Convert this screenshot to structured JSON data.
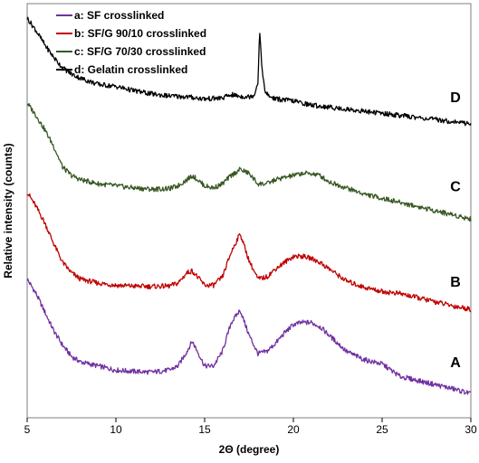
{
  "chart_data": {
    "type": "line",
    "xlabel": "2Θ (degree)",
    "ylabel": "Relative intensity (counts)",
    "xlim": [
      5,
      30
    ],
    "xticks": [
      5,
      10,
      15,
      20,
      25,
      30
    ],
    "yticks_shown": false,
    "grid": false,
    "legend_position": "top-left",
    "series": [
      {
        "name": "a: SF crosslinked",
        "curve_label": "A",
        "color": "#7030a0",
        "x": [
          5,
          5.5,
          6,
          6.5,
          7,
          7.5,
          8,
          9,
          10,
          11,
          12,
          13,
          13.5,
          14,
          14.3,
          14.6,
          15,
          15.5,
          16,
          16.5,
          17,
          17.5,
          18,
          18.5,
          19,
          19.5,
          20,
          20.5,
          21,
          21.5,
          22,
          22.5,
          23,
          24,
          25,
          25.5,
          26,
          27,
          28,
          29,
          30
        ],
        "y": [
          0.335,
          0.3,
          0.255,
          0.21,
          0.175,
          0.148,
          0.135,
          0.125,
          0.115,
          0.112,
          0.11,
          0.115,
          0.125,
          0.16,
          0.185,
          0.16,
          0.125,
          0.125,
          0.16,
          0.23,
          0.26,
          0.2,
          0.155,
          0.16,
          0.18,
          0.205,
          0.225,
          0.23,
          0.23,
          0.22,
          0.2,
          0.18,
          0.16,
          0.14,
          0.13,
          0.115,
          0.1,
          0.09,
          0.08,
          0.07,
          0.058
        ]
      },
      {
        "name": "b: SF/G 90/10 crosslinked",
        "curve_label": "B",
        "color": "#c00000",
        "x": [
          5,
          5.5,
          6,
          6.5,
          7,
          7.5,
          8,
          9,
          10,
          11,
          12,
          13,
          13.5,
          14,
          14.3,
          14.6,
          15,
          15.5,
          16,
          16.5,
          17,
          17.5,
          18,
          18.5,
          19,
          19.5,
          20,
          20.5,
          21,
          21.5,
          22,
          22.5,
          23,
          24,
          25,
          26,
          27,
          28,
          29,
          30
        ],
        "y": [
          0.545,
          0.51,
          0.47,
          0.42,
          0.375,
          0.35,
          0.335,
          0.325,
          0.32,
          0.318,
          0.317,
          0.318,
          0.325,
          0.35,
          0.355,
          0.34,
          0.32,
          0.32,
          0.34,
          0.4,
          0.445,
          0.38,
          0.335,
          0.34,
          0.36,
          0.375,
          0.39,
          0.39,
          0.385,
          0.375,
          0.36,
          0.345,
          0.33,
          0.315,
          0.305,
          0.3,
          0.29,
          0.28,
          0.27,
          0.262
        ]
      },
      {
        "name": "c: SF/G 70/30 crosslinked",
        "curve_label": "C",
        "color": "#385723",
        "x": [
          5,
          5.5,
          6,
          6.5,
          7,
          7.5,
          8,
          9,
          10,
          11,
          12,
          13,
          13.5,
          14,
          14.3,
          14.6,
          15,
          15.5,
          16,
          16.5,
          17,
          17.5,
          18,
          18.5,
          19,
          19.5,
          20,
          20.5,
          21,
          21.5,
          22,
          23,
          24,
          25,
          26,
          27,
          28,
          29,
          30
        ],
        "y": [
          0.76,
          0.73,
          0.695,
          0.655,
          0.605,
          0.585,
          0.575,
          0.565,
          0.56,
          0.555,
          0.552,
          0.553,
          0.56,
          0.575,
          0.585,
          0.575,
          0.56,
          0.555,
          0.565,
          0.585,
          0.6,
          0.59,
          0.565,
          0.565,
          0.575,
          0.58,
          0.585,
          0.59,
          0.59,
          0.585,
          0.57,
          0.555,
          0.54,
          0.53,
          0.52,
          0.51,
          0.5,
          0.49,
          0.48
        ]
      },
      {
        "name": "d: Gelatin crosslinked",
        "curve_label": "D",
        "color": "#000000",
        "x": [
          5,
          5.5,
          6,
          6.5,
          7,
          7.5,
          8,
          9,
          10,
          11,
          12,
          13,
          14,
          15,
          16,
          16.5,
          17,
          17.5,
          17.8,
          18.0,
          18.1,
          18.2,
          18.4,
          18.7,
          19,
          20,
          21,
          22,
          23,
          24,
          25,
          26,
          27,
          28,
          29,
          30
        ],
        "y": [
          0.965,
          0.935,
          0.9,
          0.87,
          0.845,
          0.83,
          0.82,
          0.805,
          0.8,
          0.79,
          0.782,
          0.777,
          0.775,
          0.77,
          0.772,
          0.78,
          0.776,
          0.775,
          0.78,
          0.81,
          0.935,
          0.86,
          0.785,
          0.775,
          0.77,
          0.765,
          0.755,
          0.75,
          0.745,
          0.74,
          0.735,
          0.73,
          0.725,
          0.72,
          0.715,
          0.71
        ]
      }
    ]
  }
}
